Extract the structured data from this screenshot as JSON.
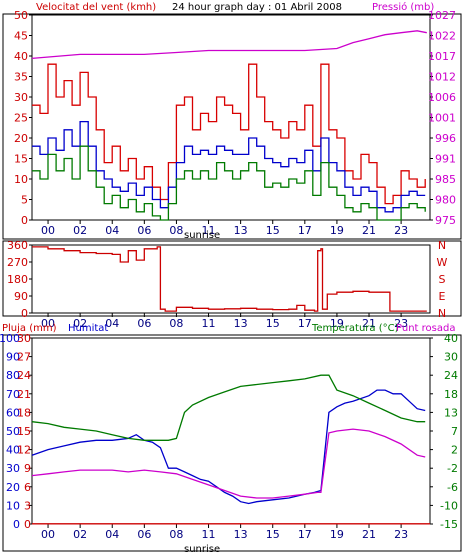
{
  "header": {
    "left": "Velocitat del vent (kmh)",
    "center": "24 hour graph day : 01 Abril 2008",
    "right": "Pressió (mb)"
  },
  "panel3": {
    "pluja": "Pluja (mm)",
    "humitat": "Humitat",
    "temperatura": "Temperatura (°C)",
    "punt_rosada": "Punt rosada"
  },
  "sunrise": "sunrise",
  "colors": {
    "wind_speed": "#d80000",
    "wind_gust": "#0000cc",
    "wind_avg": "#007a00",
    "pressure": "#cc00cc",
    "direction": "#cc0000",
    "rain": "#cc0000",
    "humidity": "#0000cc",
    "temperature": "#007a00",
    "dewpoint": "#cc00cc"
  },
  "chart_data": [
    {
      "type": "line",
      "title": "24 hour graph day : 01 Abril 2008",
      "x_ticks": [
        "00",
        "02",
        "04",
        "06",
        "08",
        "11",
        "13",
        "15",
        "17",
        "19",
        "21",
        "23"
      ],
      "x_tick_hours": [
        0,
        2,
        4,
        6,
        8,
        10,
        12,
        14,
        16,
        18,
        20,
        22
      ],
      "xlim": [
        -1,
        23.8
      ],
      "y_left_label": "Velocitat del vent (kmh)",
      "y_left_ticks": [
        0,
        5,
        10,
        15,
        20,
        25,
        30,
        35,
        40,
        45,
        50
      ],
      "y_left_lim": [
        0,
        50
      ],
      "y_right_label": "Pressió (mb)",
      "y_right_ticks": [
        975,
        980,
        985,
        991,
        996,
        1001,
        1006,
        1012,
        1017,
        1022,
        1027
      ],
      "y_right_lim": [
        975,
        1027
      ],
      "series": [
        {
          "color": "#d80000",
          "axis": "left",
          "x": [
            -1,
            -0.5,
            0,
            0.5,
            1,
            1.5,
            2,
            2.5,
            3,
            3.5,
            4,
            4.5,
            5,
            5.5,
            6,
            6.5,
            7,
            7.5,
            8,
            8.5,
            9,
            9.5,
            10,
            10.5,
            11,
            11.5,
            12,
            12.5,
            13,
            13.5,
            14,
            14.5,
            15,
            15.5,
            16,
            16.5,
            17,
            17.5,
            18,
            18.5,
            19,
            19.5,
            20,
            20.5,
            21,
            21.5,
            22,
            22.5,
            23,
            23.5
          ],
          "y": [
            28,
            26,
            38,
            30,
            34,
            28,
            36,
            30,
            22,
            14,
            18,
            12,
            15,
            10,
            13,
            8,
            5,
            14,
            28,
            30,
            22,
            26,
            24,
            30,
            28,
            26,
            22,
            38,
            30,
            24,
            22,
            20,
            24,
            22,
            28,
            18,
            38,
            22,
            20,
            12,
            10,
            16,
            14,
            8,
            4,
            6,
            12,
            10,
            8,
            10
          ]
        },
        {
          "color": "#0000cc",
          "axis": "left",
          "x": [
            -1,
            -0.5,
            0,
            0.5,
            1,
            1.5,
            2,
            2.5,
            3,
            3.5,
            4,
            4.5,
            5,
            5.5,
            6,
            6.5,
            7,
            7.5,
            8,
            8.5,
            9,
            9.5,
            10,
            10.5,
            11,
            11.5,
            12,
            12.5,
            13,
            13.5,
            14,
            14.5,
            15,
            15.5,
            16,
            16.5,
            17,
            17.5,
            18,
            18.5,
            19,
            19.5,
            20,
            20.5,
            21,
            21.5,
            22,
            22.5,
            23,
            23.5
          ],
          "y": [
            18,
            16,
            20,
            17,
            22,
            18,
            24,
            18,
            12,
            10,
            8,
            7,
            9,
            6,
            8,
            5,
            3,
            8,
            14,
            18,
            16,
            17,
            16,
            18,
            17,
            16,
            16,
            20,
            18,
            15,
            14,
            13,
            15,
            14,
            17,
            12,
            20,
            14,
            12,
            8,
            6,
            8,
            7,
            3,
            2,
            3,
            6,
            7,
            6,
            6
          ]
        },
        {
          "color": "#007a00",
          "axis": "left",
          "x": [
            -1,
            -0.5,
            0,
            0.5,
            1,
            1.5,
            2,
            2.5,
            3,
            3.5,
            4,
            4.5,
            5,
            5.5,
            6,
            6.5,
            7,
            7.5,
            8,
            8.5,
            9,
            9.5,
            10,
            10.5,
            11,
            11.5,
            12,
            12.5,
            13,
            13.5,
            14,
            14.5,
            15,
            15.5,
            16,
            16.5,
            17,
            17.5,
            18,
            18.5,
            19,
            19.5,
            20,
            20.5,
            21,
            21.5,
            22,
            22.5,
            23,
            23.5
          ],
          "y": [
            12,
            10,
            16,
            12,
            15,
            10,
            18,
            12,
            8,
            4,
            6,
            3,
            5,
            2,
            4,
            1,
            0,
            4,
            10,
            12,
            10,
            12,
            10,
            14,
            12,
            10,
            12,
            14,
            12,
            8,
            9,
            8,
            10,
            9,
            12,
            6,
            14,
            8,
            6,
            3,
            2,
            4,
            3,
            0,
            0,
            0,
            3,
            4,
            3,
            2
          ]
        },
        {
          "color": "#cc00cc",
          "axis": "right",
          "x": [
            -1,
            2,
            6,
            8,
            10,
            12,
            14,
            16,
            18,
            19,
            20,
            21,
            22,
            23,
            23.6
          ],
          "y": [
            1016,
            1017,
            1017,
            1017.5,
            1018,
            1018,
            1018,
            1018,
            1018.5,
            1020,
            1021,
            1022,
            1022.5,
            1023,
            1022.5
          ]
        }
      ],
      "annotations": [
        "sunrise"
      ]
    },
    {
      "type": "line",
      "x_ticks": [
        "00",
        "02",
        "04",
        "06",
        "08",
        "11",
        "13",
        "15",
        "17",
        "19",
        "21",
        "23"
      ],
      "x_tick_hours": [
        0,
        2,
        4,
        6,
        8,
        10,
        12,
        14,
        16,
        18,
        20,
        22
      ],
      "xlim": [
        -1,
        23.8
      ],
      "y_left_ticks": [
        0,
        90,
        180,
        270,
        360
      ],
      "y_left_lim": [
        0,
        360
      ],
      "y_right_ticks": [
        "N",
        "W",
        "S",
        "E",
        "N"
      ],
      "series": [
        {
          "color": "#cc0000",
          "x": [
            -1,
            0,
            1,
            2,
            3,
            4,
            4.5,
            5,
            5.5,
            6,
            6.8,
            7,
            7.3,
            8,
            9,
            10,
            11,
            12,
            13,
            14,
            15,
            15.5,
            16,
            16.6,
            16.8,
            17,
            17.1,
            17.4,
            18,
            19,
            20,
            21,
            21.3,
            22,
            23,
            23.6
          ],
          "y": [
            350,
            340,
            330,
            320,
            315,
            310,
            270,
            330,
            280,
            340,
            350,
            20,
            10,
            30,
            25,
            20,
            22,
            25,
            20,
            18,
            20,
            40,
            15,
            10,
            330,
            340,
            20,
            100,
            110,
            115,
            110,
            110,
            10,
            10,
            10,
            10
          ]
        }
      ]
    },
    {
      "type": "line",
      "x_ticks": [
        "00",
        "02",
        "04",
        "06",
        "08",
        "11",
        "13",
        "15",
        "17",
        "19",
        "21",
        "23"
      ],
      "x_tick_hours": [
        0,
        2,
        4,
        6,
        8,
        10,
        12,
        14,
        16,
        18,
        20,
        22
      ],
      "xlim": [
        -1,
        23.8
      ],
      "y_hum_label": "Humitat",
      "y_hum_ticks": [
        0,
        10,
        20,
        30,
        40,
        50,
        60,
        70,
        80,
        90,
        100
      ],
      "y_hum_lim": [
        0,
        100
      ],
      "y_rain_label": "Pluja (mm)",
      "y_rain_ticks": [
        0,
        3,
        6,
        9,
        12,
        15,
        18,
        21,
        24,
        27,
        30
      ],
      "y_rain_lim": [
        0,
        30
      ],
      "y_temp_label": "Temperatura (°C)",
      "y_temp_ticks": [
        -15,
        -10,
        -6,
        -2,
        2,
        7,
        13,
        18,
        24,
        30,
        40
      ],
      "series": [
        {
          "name": "Humitat",
          "color": "#0000cc",
          "x": [
            -1,
            0,
            1,
            2,
            3,
            4,
            5,
            5.5,
            6,
            6.5,
            7,
            7.5,
            8,
            8.5,
            9,
            9.5,
            10,
            10.5,
            11,
            11.5,
            12,
            12.5,
            13,
            14,
            15,
            16,
            16.6,
            17,
            17.5,
            18,
            18.5,
            19,
            20,
            20.5,
            21,
            21.5,
            22,
            22.5,
            23,
            23.5
          ],
          "y": [
            37,
            40,
            42,
            44,
            45,
            45,
            46,
            48,
            45,
            44,
            41,
            30,
            30,
            28,
            26,
            24,
            23,
            20,
            17,
            15,
            12,
            11,
            12,
            13,
            14,
            16,
            17,
            18,
            60,
            63,
            65,
            66,
            69,
            72,
            72,
            70,
            70,
            66,
            62,
            61
          ]
        },
        {
          "name": "Punt rosada",
          "color": "#cc00cc",
          "x": [
            -1,
            0,
            1,
            2,
            3,
            4,
            5,
            6,
            7,
            8,
            9,
            10,
            11,
            12,
            13,
            14,
            15,
            16,
            16.8,
            17,
            17.5,
            18,
            19,
            20,
            21,
            22,
            23,
            23.5
          ],
          "y": [
            26,
            27,
            28,
            29,
            29,
            29,
            28,
            29,
            28,
            27,
            24,
            21,
            18,
            15,
            14,
            14,
            15,
            16,
            17,
            17,
            49,
            50,
            51,
            50,
            47,
            43,
            37,
            36
          ]
        },
        {
          "name": "Temperatura",
          "color": "#007a00",
          "x": [
            -1,
            0,
            1,
            2,
            3,
            4,
            5,
            6,
            7,
            7.5,
            8,
            8.5,
            9,
            10,
            11,
            12,
            13,
            14,
            15,
            16,
            17,
            17.5,
            18,
            19,
            20,
            21,
            22,
            23,
            23.5
          ],
          "y": [
            55,
            54,
            52,
            51,
            50,
            48,
            46,
            45,
            45,
            45,
            46,
            60,
            64,
            68,
            71,
            74,
            75,
            76,
            77,
            78,
            80,
            80,
            72,
            69,
            65,
            61,
            57,
            55,
            55
          ]
        },
        {
          "name": "Pluja",
          "color": "#cc0000",
          "x": [
            -1,
            23.8
          ],
          "y": [
            0.1,
            0.1
          ]
        }
      ],
      "annotations": [
        "sunrise"
      ]
    }
  ]
}
